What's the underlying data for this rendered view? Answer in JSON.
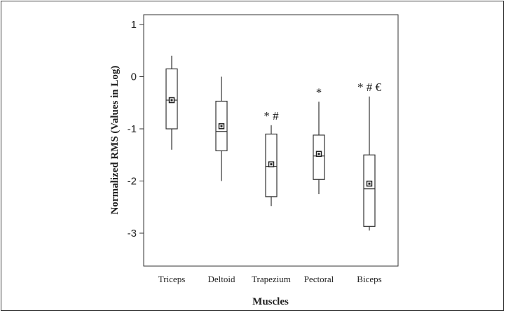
{
  "chart_data": {
    "type": "box",
    "xlabel": "Muscles",
    "ylabel": "Normalized RMS (Values in Log)",
    "ylim": [
      -3.6,
      1.1
    ],
    "yticks": [
      {
        "value": 1,
        "label": "1"
      },
      {
        "value": 0,
        "label": "0"
      },
      {
        "value": -1,
        "label": "-1"
      },
      {
        "value": -2,
        "label": "-2"
      },
      {
        "value": -3,
        "label": "-3"
      }
    ],
    "categories": [
      "Triceps",
      "Deltoid",
      "Trapezium",
      "Pectoral",
      "Biceps"
    ],
    "boxes": [
      {
        "category": "Triceps",
        "whisker_low": -1.4,
        "q1": -1.0,
        "median": -0.45,
        "q3": 0.15,
        "whisker_high": 0.4,
        "mean": -0.45,
        "annotation": ""
      },
      {
        "category": "Deltoid",
        "whisker_low": -2.0,
        "q1": -1.42,
        "median": -1.05,
        "q3": -0.47,
        "whisker_high": 0.0,
        "mean": -0.95,
        "annotation": ""
      },
      {
        "category": "Trapezium",
        "whisker_low": -2.48,
        "q1": -2.3,
        "median": -1.72,
        "q3": -1.1,
        "whisker_high": -0.93,
        "mean": -1.68,
        "annotation": "* #"
      },
      {
        "category": "Pectoral",
        "whisker_low": -2.25,
        "q1": -1.97,
        "median": -1.52,
        "q3": -1.12,
        "whisker_high": -0.48,
        "mean": -1.48,
        "annotation": "*"
      },
      {
        "category": "Biceps",
        "whisker_low": -2.95,
        "q1": -2.87,
        "median": -2.15,
        "q3": -1.5,
        "whisker_high": -0.38,
        "mean": -2.05,
        "annotation": "* # €"
      }
    ],
    "grid": false,
    "legend": "none"
  }
}
